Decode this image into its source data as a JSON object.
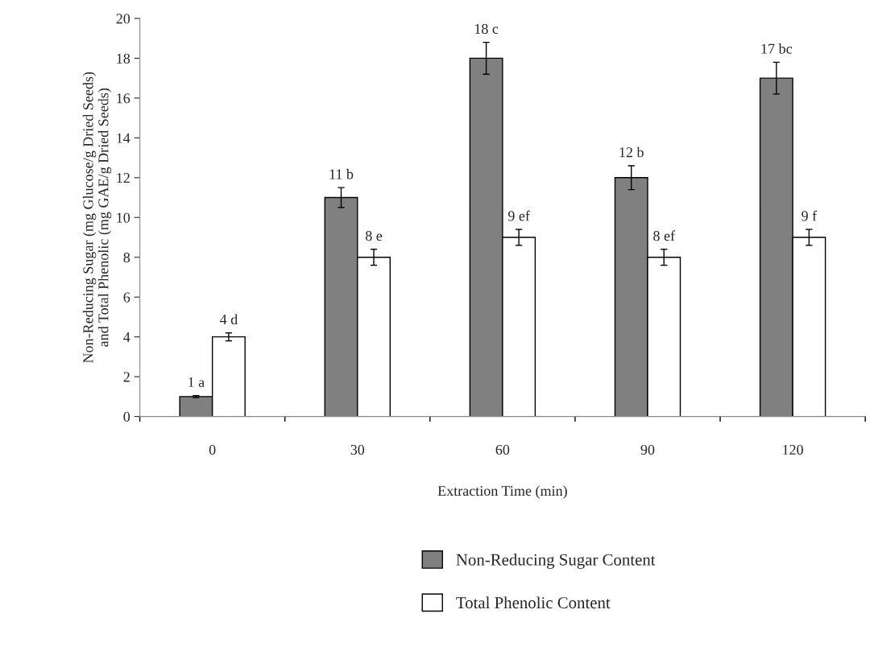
{
  "chart_data": {
    "type": "bar",
    "xlabel": "Extraction Time (min)",
    "ylabel": "Non-Reducing Sugar (mg Glucose/g Dried Seeds)\nand Total Phenolic (mg GAE/g Dried Seeds)",
    "categories": [
      "0",
      "30",
      "60",
      "90",
      "120"
    ],
    "series": [
      {
        "name": "Non-Reducing Sugar Content",
        "color": "#808080",
        "values": [
          1,
          11,
          18,
          12,
          17
        ],
        "errors": [
          0.05,
          0.5,
          0.8,
          0.6,
          0.8
        ],
        "value_labels": [
          "1 a",
          "11 b",
          "18 c",
          "12 b",
          "17 bc"
        ]
      },
      {
        "name": "Total Phenolic Content",
        "color": "#ffffff",
        "values": [
          4,
          8,
          9,
          8,
          9
        ],
        "errors": [
          0.2,
          0.4,
          0.4,
          0.4,
          0.4
        ],
        "value_labels": [
          "4 d",
          "8 e",
          "9 ef",
          "8 ef",
          "9 f"
        ]
      }
    ],
    "ylim": [
      0,
      20
    ],
    "yticks": [
      0,
      2,
      4,
      6,
      8,
      10,
      12,
      14,
      16,
      18,
      20
    ],
    "grid": false,
    "legend": "bottom"
  }
}
